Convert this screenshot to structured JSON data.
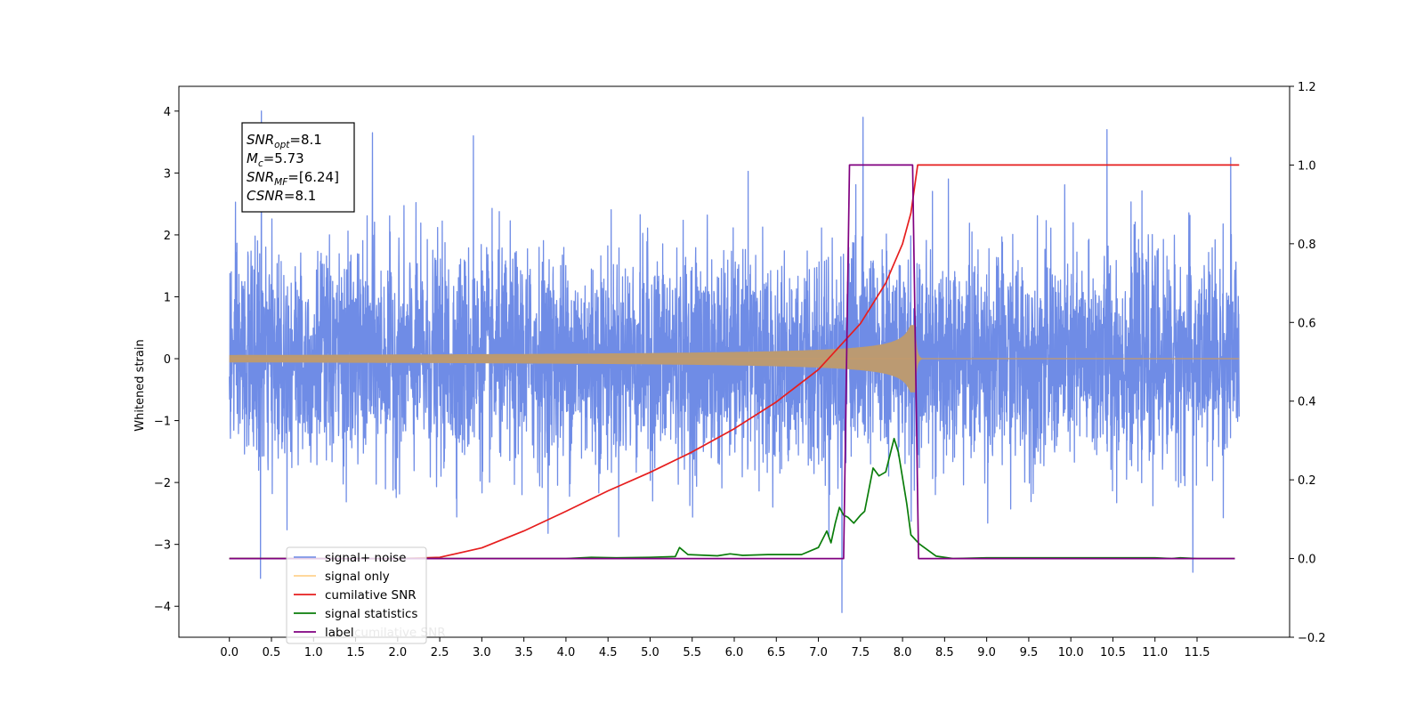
{
  "chart_data": {
    "type": "line",
    "ylabel": "Whitened strain",
    "xlim": [
      -0.6,
      12.6
    ],
    "ylim": [
      -4.5,
      4.4
    ],
    "y2lim": [
      -0.2,
      1.2
    ],
    "x_ticks": [
      0.0,
      0.5,
      1.0,
      1.5,
      2.0,
      2.5,
      3.0,
      3.5,
      4.0,
      4.5,
      5.0,
      5.5,
      6.0,
      6.5,
      7.0,
      7.5,
      8.0,
      8.5,
      9.0,
      9.5,
      10.0,
      10.5,
      11.0,
      11.5
    ],
    "x_tick_labels": [
      "0.0",
      "0.5",
      "1.0",
      "1.5",
      "2.0",
      "2.5",
      "3.0",
      "3.5",
      "4.0",
      "4.5",
      "5.0",
      "5.5",
      "6.0",
      "6.5",
      "7.0",
      "7.5",
      "8.0",
      "8.5",
      "9.0",
      "9.5",
      "10.0",
      "10.5",
      "11.0",
      "11.5"
    ],
    "y_ticks": [
      4,
      3,
      2,
      1,
      0,
      -1,
      -2,
      -3,
      -4
    ],
    "y_tick_labels": [
      "4",
      "3",
      "2",
      "1",
      "0",
      "−1",
      "−2",
      "−3",
      "−4"
    ],
    "y2_ticks": [
      1.2,
      1.0,
      0.8,
      0.6,
      0.4,
      0.2,
      0.0,
      -0.2
    ],
    "y2_tick_labels": [
      "1.2",
      "1.0",
      "0.8",
      "0.6",
      "0.4",
      "0.2",
      "0.0",
      "−0.2"
    ],
    "grid": false,
    "legend_placement": "lower-left",
    "annotation": {
      "lines": [
        {
          "base": "SNR",
          "sub": "opt",
          "rest": "=8.1"
        },
        {
          "base": "M",
          "sub": "c",
          "rest": "=5.73"
        },
        {
          "base": "SNR",
          "sub": "MF",
          "rest": "=[6.24]"
        },
        {
          "base": "CSNR",
          "sub": "",
          "rest": "=8.1"
        }
      ]
    },
    "series": [
      {
        "name": "signal+ noise",
        "kind": "noise",
        "axis": "left",
        "color": "#6f8ce6",
        "x_range": [
          0.0,
          12.0
        ],
        "std": 0.85,
        "spikes": [
          {
            "x": 0.38,
            "y": 4.0
          },
          {
            "x": 0.37,
            "y": -3.55
          },
          {
            "x": 1.7,
            "y": 3.65
          },
          {
            "x": 2.9,
            "y": 3.6
          },
          {
            "x": 7.53,
            "y": 3.9
          },
          {
            "x": 7.28,
            "y": -4.1
          },
          {
            "x": 10.43,
            "y": 3.7
          },
          {
            "x": 11.9,
            "y": 3.25
          },
          {
            "x": 11.45,
            "y": -3.45
          }
        ]
      },
      {
        "name": "signal only",
        "kind": "chirp",
        "axis": "left",
        "color": "#c49a6c",
        "x_range": [
          0.0,
          12.0
        ],
        "merger_time": 8.15,
        "peak_amplitude": 0.55
      },
      {
        "name": "cumilative SNR",
        "kind": "line",
        "axis": "right",
        "color": "#e61e1e",
        "x": [
          0.0,
          1.0,
          2.0,
          2.5,
          3.0,
          3.5,
          4.0,
          4.5,
          5.0,
          5.5,
          6.0,
          6.5,
          7.0,
          7.5,
          7.8,
          8.0,
          8.1,
          8.18,
          12.0
        ],
        "values": [
          0.0,
          0.0,
          0.0,
          0.003,
          0.027,
          0.07,
          0.12,
          0.172,
          0.219,
          0.271,
          0.33,
          0.398,
          0.48,
          0.597,
          0.7,
          0.8,
          0.878,
          1.0,
          1.0
        ]
      },
      {
        "name": "signal statistics",
        "kind": "line",
        "axis": "right",
        "color": "#0a7d0a",
        "x": [
          0.0,
          4.0,
          4.3,
          4.6,
          5.0,
          5.3,
          5.35,
          5.45,
          5.8,
          5.95,
          6.1,
          6.4,
          6.8,
          7.0,
          7.1,
          7.15,
          7.2,
          7.25,
          7.3,
          7.35,
          7.42,
          7.5,
          7.55,
          7.65,
          7.72,
          7.8,
          7.9,
          7.95,
          8.05,
          8.1,
          8.2,
          8.4,
          8.6,
          9.0,
          10.0,
          11.0,
          11.2,
          11.3,
          11.5,
          11.95
        ],
        "values": [
          0.0,
          0.0,
          0.003,
          0.002,
          0.003,
          0.005,
          0.028,
          0.01,
          0.007,
          0.012,
          0.008,
          0.01,
          0.01,
          0.028,
          0.07,
          0.04,
          0.09,
          0.13,
          0.11,
          0.105,
          0.09,
          0.11,
          0.12,
          0.23,
          0.21,
          0.22,
          0.305,
          0.27,
          0.14,
          0.06,
          0.037,
          0.006,
          0.0,
          0.002,
          0.002,
          0.002,
          0.0,
          0.002,
          0.0,
          0.0
        ]
      },
      {
        "name": "label",
        "kind": "line",
        "axis": "right",
        "color": "#800080",
        "x": [
          0.0,
          7.3,
          7.37,
          8.12,
          8.19,
          11.95
        ],
        "values": [
          0.0,
          0.0,
          1.0,
          1.0,
          0.0,
          0.0
        ]
      },
      {
        "name": "cumilative SNR",
        "kind": "ghost",
        "color": "#bbbbbb"
      }
    ]
  }
}
